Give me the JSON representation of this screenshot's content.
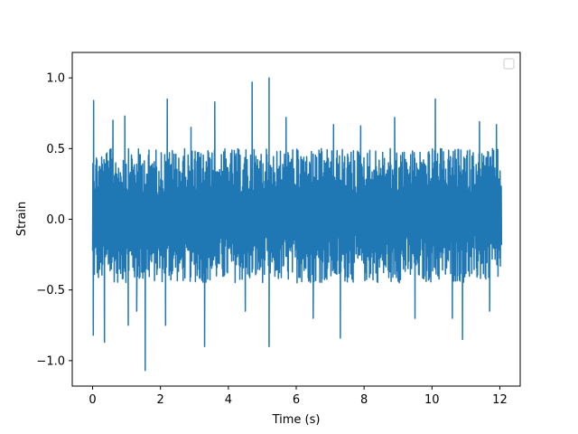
{
  "chart_data": {
    "type": "line",
    "title": "",
    "xlabel": "Time (s)",
    "ylabel": "Strain",
    "xlim": [
      -0.6,
      12.6
    ],
    "ylim": [
      -1.18,
      1.18
    ],
    "xticks": [
      0,
      2,
      4,
      6,
      8,
      10,
      12
    ],
    "xtick_labels": [
      "0",
      "2",
      "4",
      "6",
      "8",
      "10",
      "12"
    ],
    "yticks": [
      -1.0,
      -0.5,
      0.0,
      0.5,
      1.0
    ],
    "ytick_labels": [
      "−1.0",
      "−0.5",
      "0.0",
      "0.5",
      "1.0"
    ],
    "grid": false,
    "legend": {
      "placement": "upper-right",
      "entries": []
    },
    "series": [
      {
        "color": "#1f77b4",
        "x_range": [
          0,
          12.05
        ],
        "band": [
          -0.5,
          0.55
        ],
        "peaks": [
          [
            0.03,
            0.84
          ],
          [
            0.02,
            -0.82
          ],
          [
            0.35,
            -0.87
          ],
          [
            0.6,
            0.7
          ],
          [
            0.95,
            0.73
          ],
          [
            1.05,
            -0.75
          ],
          [
            1.3,
            -0.65
          ],
          [
            1.55,
            -1.07
          ],
          [
            2.2,
            0.85
          ],
          [
            2.15,
            -0.75
          ],
          [
            2.9,
            0.65
          ],
          [
            3.3,
            -0.9
          ],
          [
            3.6,
            0.83
          ],
          [
            4.7,
            0.97
          ],
          [
            4.5,
            -0.65
          ],
          [
            5.2,
            1.0
          ],
          [
            5.2,
            -0.9
          ],
          [
            5.7,
            0.72
          ],
          [
            6.5,
            -0.7
          ],
          [
            7.1,
            0.67
          ],
          [
            7.3,
            -0.84
          ],
          [
            7.9,
            0.66
          ],
          [
            8.9,
            0.72
          ],
          [
            9.5,
            -0.7
          ],
          [
            10.1,
            0.85
          ],
          [
            10.6,
            -0.7
          ],
          [
            10.9,
            -0.85
          ],
          [
            11.4,
            0.69
          ],
          [
            11.9,
            0.67
          ],
          [
            11.7,
            -0.65
          ]
        ]
      }
    ]
  }
}
